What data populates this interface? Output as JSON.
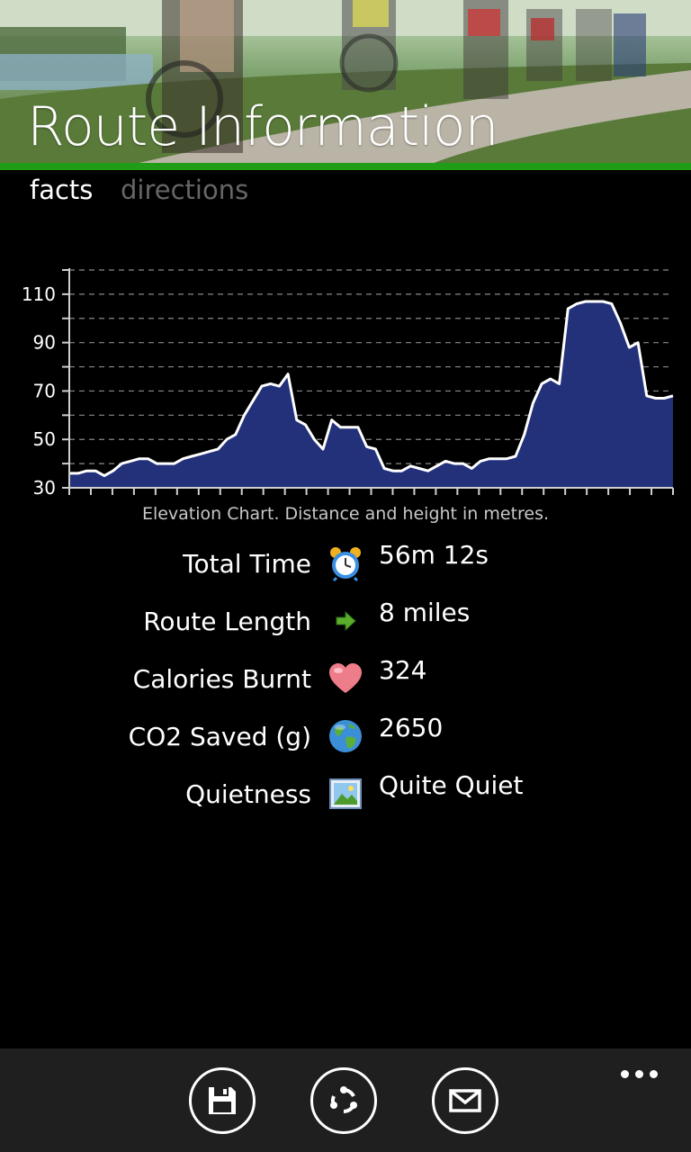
{
  "header": {
    "title": "Route Information"
  },
  "tabs": [
    {
      "label": "facts",
      "active": true
    },
    {
      "label": "directions",
      "active": false
    }
  ],
  "chart_data": {
    "type": "area",
    "caption": "Elevation Chart. Distance and height in metres.",
    "ylim": [
      30,
      120
    ],
    "y_ticks": [
      "110",
      "90",
      "70",
      "50",
      "30"
    ],
    "y_tick_values": [
      110,
      90,
      70,
      50,
      30
    ],
    "grid": true,
    "fill_color": "#23307a",
    "line_color": "#ffffff",
    "series": [
      {
        "values": [
          36,
          36,
          37,
          37,
          35,
          37,
          40,
          41,
          42,
          42,
          40,
          40,
          40,
          42,
          43,
          44,
          45,
          46,
          50,
          52,
          60,
          66,
          72,
          73,
          72,
          77,
          58,
          56,
          50,
          46,
          58,
          55,
          55,
          55,
          47,
          46,
          38,
          37,
          37,
          39,
          38,
          37,
          39,
          41,
          40,
          40,
          38,
          41,
          42,
          42,
          42,
          43,
          52,
          65,
          73,
          75,
          73,
          104,
          106,
          107,
          107,
          107,
          106,
          98,
          88,
          90,
          68,
          67,
          67,
          68
        ]
      }
    ]
  },
  "facts": [
    {
      "label": "Total Time",
      "icon": "alarm-clock-icon",
      "value": "56m 12s"
    },
    {
      "label": "Route Length",
      "icon": "green-arrow-icon",
      "value": "8 miles"
    },
    {
      "label": "Calories Burnt",
      "icon": "heart-icon",
      "value": "324"
    },
    {
      "label": "CO2 Saved (g)",
      "icon": "globe-icon",
      "value": "2650"
    },
    {
      "label": "Quietness",
      "icon": "landscape-picture-icon",
      "value": "Quite Quiet"
    }
  ],
  "app_bar": {
    "buttons": [
      {
        "icon": "save-icon"
      },
      {
        "icon": "share-icon"
      },
      {
        "icon": "email-icon"
      }
    ],
    "more_icon": "ellipsis-icon"
  },
  "colors": {
    "accent": "#1f9d17",
    "app_bar_bg": "#1f1f1f"
  }
}
